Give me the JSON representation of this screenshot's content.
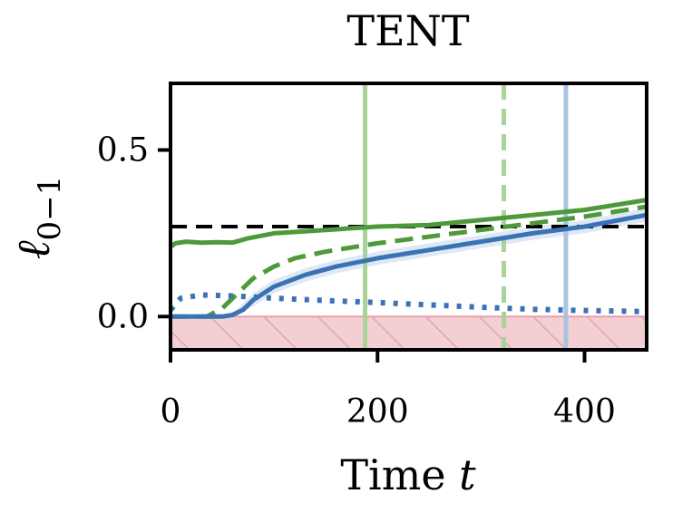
{
  "chart_data": {
    "type": "line",
    "title": "TENT",
    "xlabel_prefix": "Time ",
    "xlabel_var": "t",
    "ylabel_main": "ℓ",
    "ylabel_sub": "0−1",
    "xlim": [
      0,
      460
    ],
    "ylim": [
      -0.1,
      0.7
    ],
    "xticks": [
      0,
      200,
      400
    ],
    "xtick_labels": [
      "0",
      "200",
      "400"
    ],
    "yticks": [
      0.0,
      0.5
    ],
    "ytick_labels": [
      "0.0",
      "0.5"
    ],
    "grid": false,
    "reference_line": {
      "y": 0.27,
      "style": "dashed",
      "color": "#000000"
    },
    "shaded_region": {
      "y0": -0.1,
      "y1": 0.0,
      "color": "#e8a0a8",
      "hatch": true
    },
    "vertical_lines": [
      {
        "x": 188,
        "style": "solid",
        "color": "#a9d39b"
      },
      {
        "x": 322,
        "style": "dashed",
        "color": "#a9d39b"
      },
      {
        "x": 382,
        "style": "solid",
        "color": "#a8c4e0"
      }
    ],
    "series": [
      {
        "name": "green-solid",
        "color": "#4e9a3a",
        "style": "solid",
        "x": [
          0,
          5,
          15,
          30,
          45,
          60,
          75,
          100,
          150,
          200,
          250,
          300,
          350,
          400,
          460
        ],
        "y": [
          0.21,
          0.22,
          0.225,
          0.222,
          0.223,
          0.222,
          0.235,
          0.25,
          0.26,
          0.27,
          0.275,
          0.29,
          0.305,
          0.32,
          0.35
        ]
      },
      {
        "name": "green-dashed",
        "color": "#4e9a3a",
        "style": "dashed",
        "x": [
          0,
          20,
          35,
          50,
          65,
          80,
          100,
          120,
          150,
          200,
          250,
          300,
          350,
          400,
          460
        ],
        "y": [
          0.0,
          0.0,
          0.0,
          0.025,
          0.07,
          0.115,
          0.15,
          0.175,
          0.195,
          0.22,
          0.24,
          0.26,
          0.28,
          0.3,
          0.33
        ]
      },
      {
        "name": "blue-solid",
        "color": "#3a73b4",
        "style": "solid",
        "x": [
          0,
          30,
          50,
          60,
          70,
          80,
          100,
          130,
          160,
          200,
          250,
          300,
          350,
          400,
          460
        ],
        "y": [
          0.0,
          0.0,
          0.0,
          0.005,
          0.02,
          0.05,
          0.09,
          0.125,
          0.15,
          0.175,
          0.2,
          0.225,
          0.25,
          0.27,
          0.305
        ]
      },
      {
        "name": "blue-dotted",
        "color": "#3a73b4",
        "style": "dotted",
        "x": [
          0,
          10,
          30,
          60,
          100,
          150,
          200,
          250,
          300,
          350,
          400,
          460
        ],
        "y": [
          0.02,
          0.055,
          0.065,
          0.062,
          0.055,
          0.048,
          0.042,
          0.035,
          0.028,
          0.022,
          0.018,
          0.015
        ]
      }
    ],
    "band": {
      "name": "blue-solid-confidence",
      "color": "#c9d9ee",
      "x": [
        0,
        60,
        80,
        100,
        130,
        160,
        200,
        250,
        300,
        350,
        400,
        460
      ],
      "lower": [
        0.0,
        0.0,
        0.03,
        0.07,
        0.105,
        0.13,
        0.155,
        0.18,
        0.205,
        0.23,
        0.25,
        0.285
      ],
      "upper": [
        0.0,
        0.01,
        0.07,
        0.11,
        0.145,
        0.17,
        0.195,
        0.22,
        0.245,
        0.27,
        0.29,
        0.325
      ]
    }
  }
}
